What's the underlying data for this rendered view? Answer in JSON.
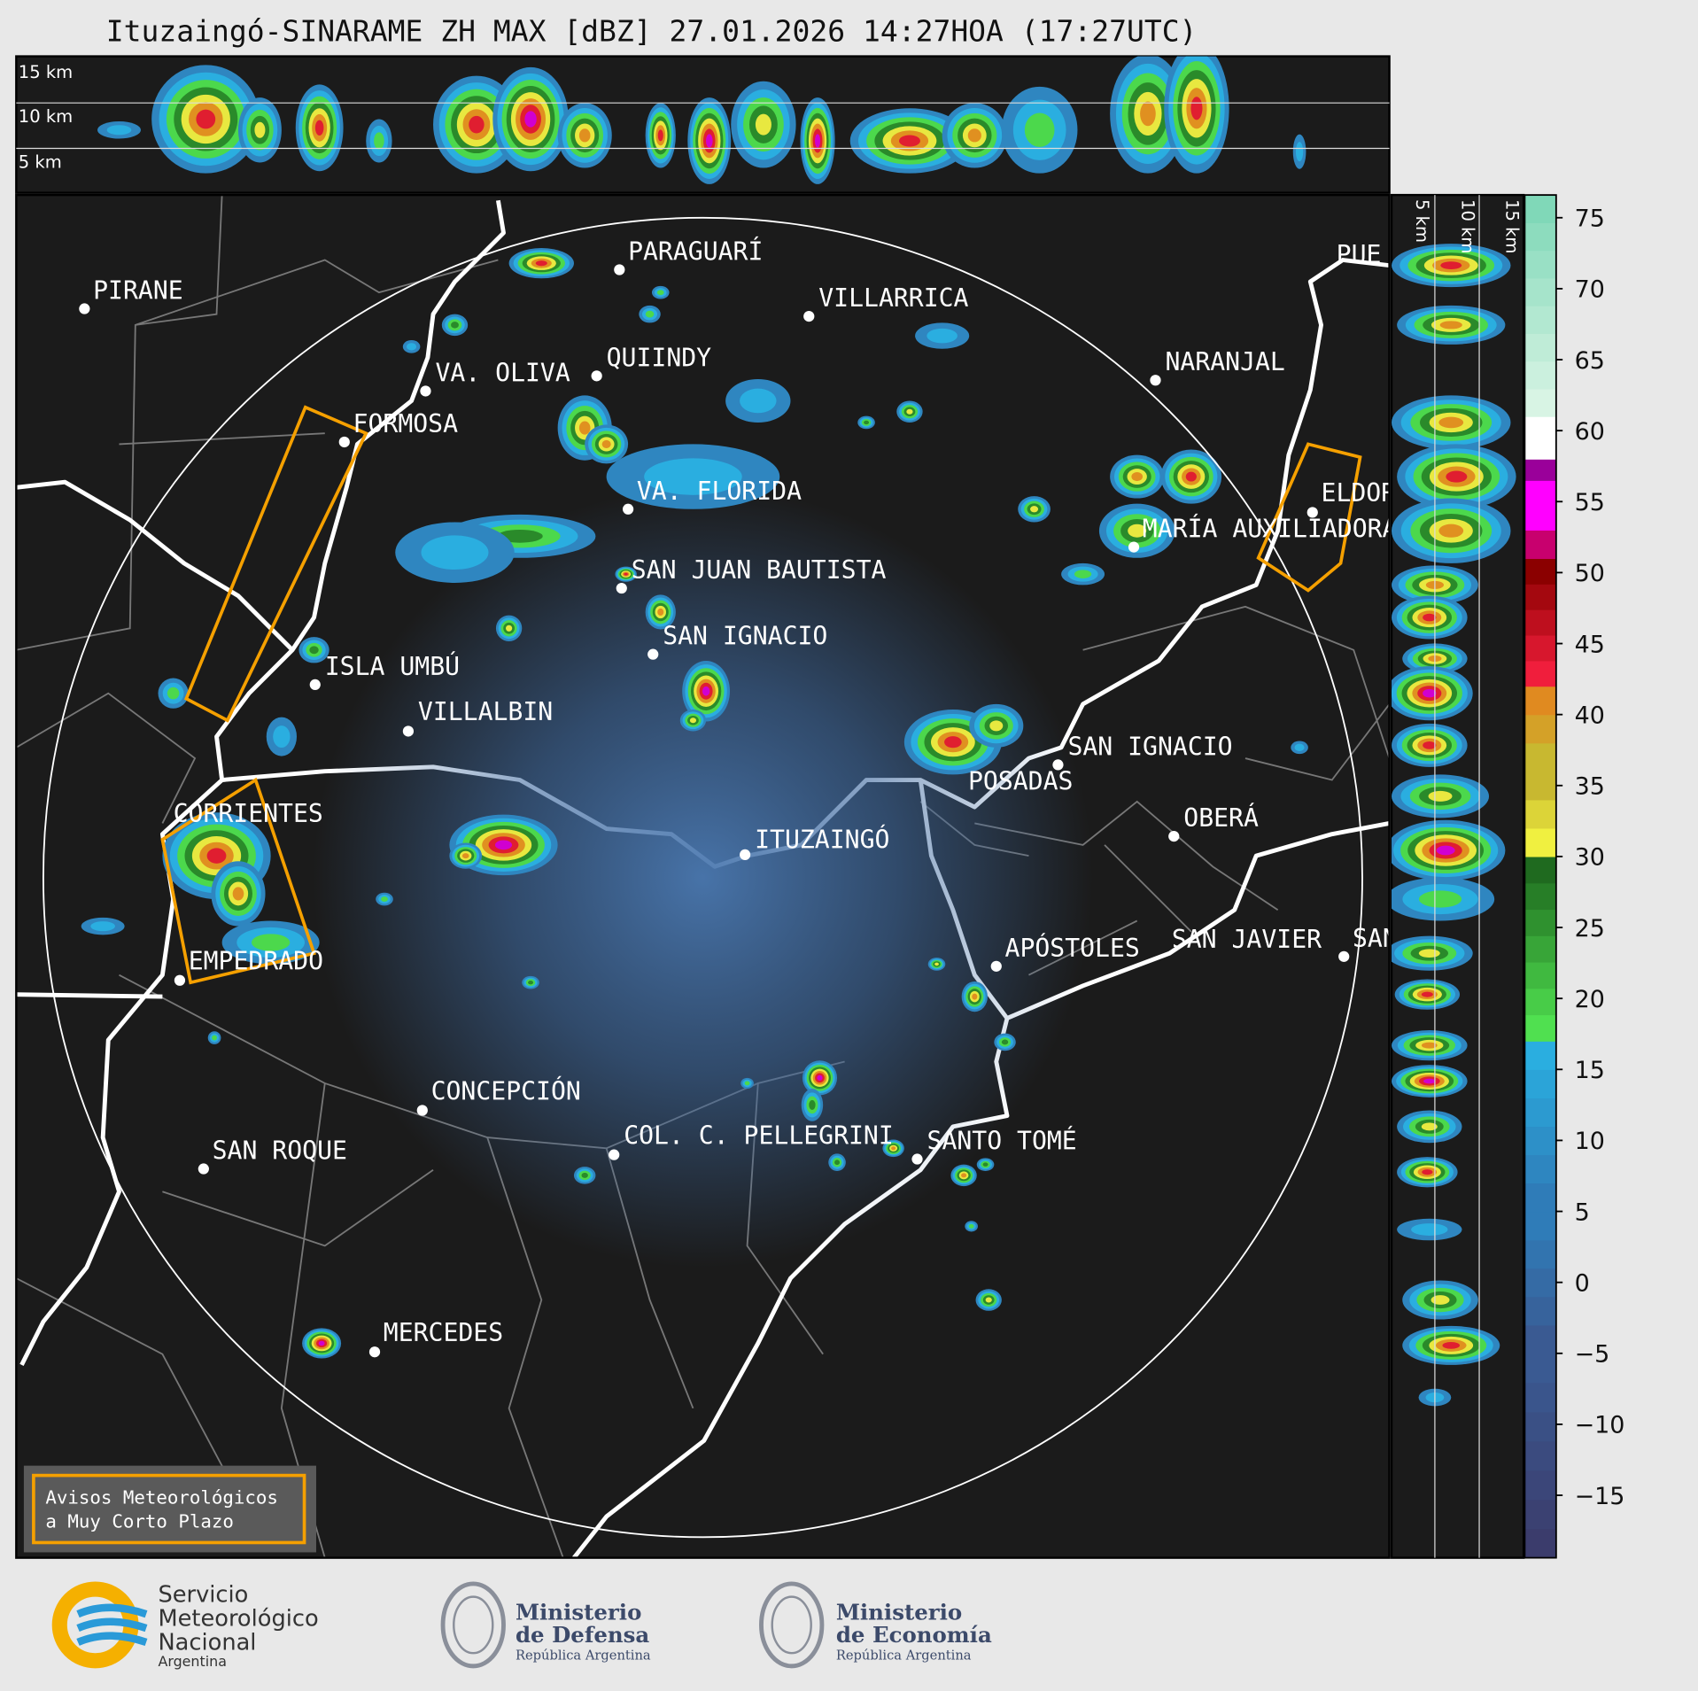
{
  "title": "Ituzaingó-SINARAME ZH MAX [dBZ] 27.01.2026 14:27HOA (17:27UTC)",
  "top_panel_heights": [
    "15 km",
    "10 km",
    "5 km"
  ],
  "side_panel_heights": [
    "5 km",
    "10 km",
    "15 km"
  ],
  "places": [
    "PIRANE",
    "PARAGUARÍ",
    "VILLARRICA",
    "QUIINDY",
    "VA. OLIVA",
    "NARANJAL",
    "FORMOSA",
    "VA. FLORIDA",
    "MARÍA AUXILIADORA",
    "ELDORADO",
    "PUE",
    "SAN JUAN BAUTISTA",
    "SAN IGNACIO",
    "ISLA UMBÚ",
    "VILLALBIN",
    "SAN IGNACIO",
    "POSADAS",
    "CORRIENTES",
    "ITUZAINGÓ",
    "OBERÁ",
    "APÓSTOLES",
    "SAN JAVIER",
    "SAN",
    "EMPEDRADO",
    "CONCEPCIÓN",
    "COL. C. PELLEGRINI",
    "SANTO TOMÉ",
    "SAN ROQUE",
    "MERCEDES"
  ],
  "warning_legend": [
    "Avisos Meteorológicos",
    "a Muy Corto Plazo"
  ],
  "colorbar": {
    "range": [
      -19.4,
      76.6
    ],
    "ticks": [
      {
        "value": -15,
        "label": "−15"
      },
      {
        "value": -10,
        "label": "−10"
      },
      {
        "value": -5,
        "label": "−5"
      },
      0,
      5,
      10,
      15,
      20,
      25,
      30,
      35,
      40,
      45,
      50,
      55,
      60,
      65,
      70,
      75
    ],
    "color_stops": [
      [
        -19.4,
        "#3b3c6c"
      ],
      [
        -5,
        "#3a5a92"
      ],
      [
        5,
        "#2f7cb8"
      ],
      [
        17,
        "#2aaee0"
      ],
      [
        17,
        "#50e050"
      ],
      [
        30,
        "#1f6a1f"
      ],
      [
        30,
        "#f0f040"
      ],
      [
        36,
        "#c8b830"
      ],
      [
        42,
        "#e08a20"
      ],
      [
        42,
        "#f01e3c"
      ],
      [
        51,
        "#8b0000"
      ],
      [
        51,
        "#c8006e"
      ],
      [
        55,
        "#ff00ff"
      ],
      [
        58,
        "#9a009a"
      ],
      [
        58,
        "#ffffff"
      ],
      [
        61,
        "#ffffff"
      ],
      [
        61,
        "#d8f4e4"
      ],
      [
        76.6,
        "#80d8b8"
      ]
    ]
  },
  "logos": {
    "smn": [
      "Servicio",
      "Meteorológico",
      "Nacional",
      "Argentina"
    ],
    "defensa": [
      "Ministerio",
      "de Defensa",
      "República Argentina"
    ],
    "economia": [
      "Ministerio",
      "de Economía",
      "República Argentina"
    ]
  }
}
